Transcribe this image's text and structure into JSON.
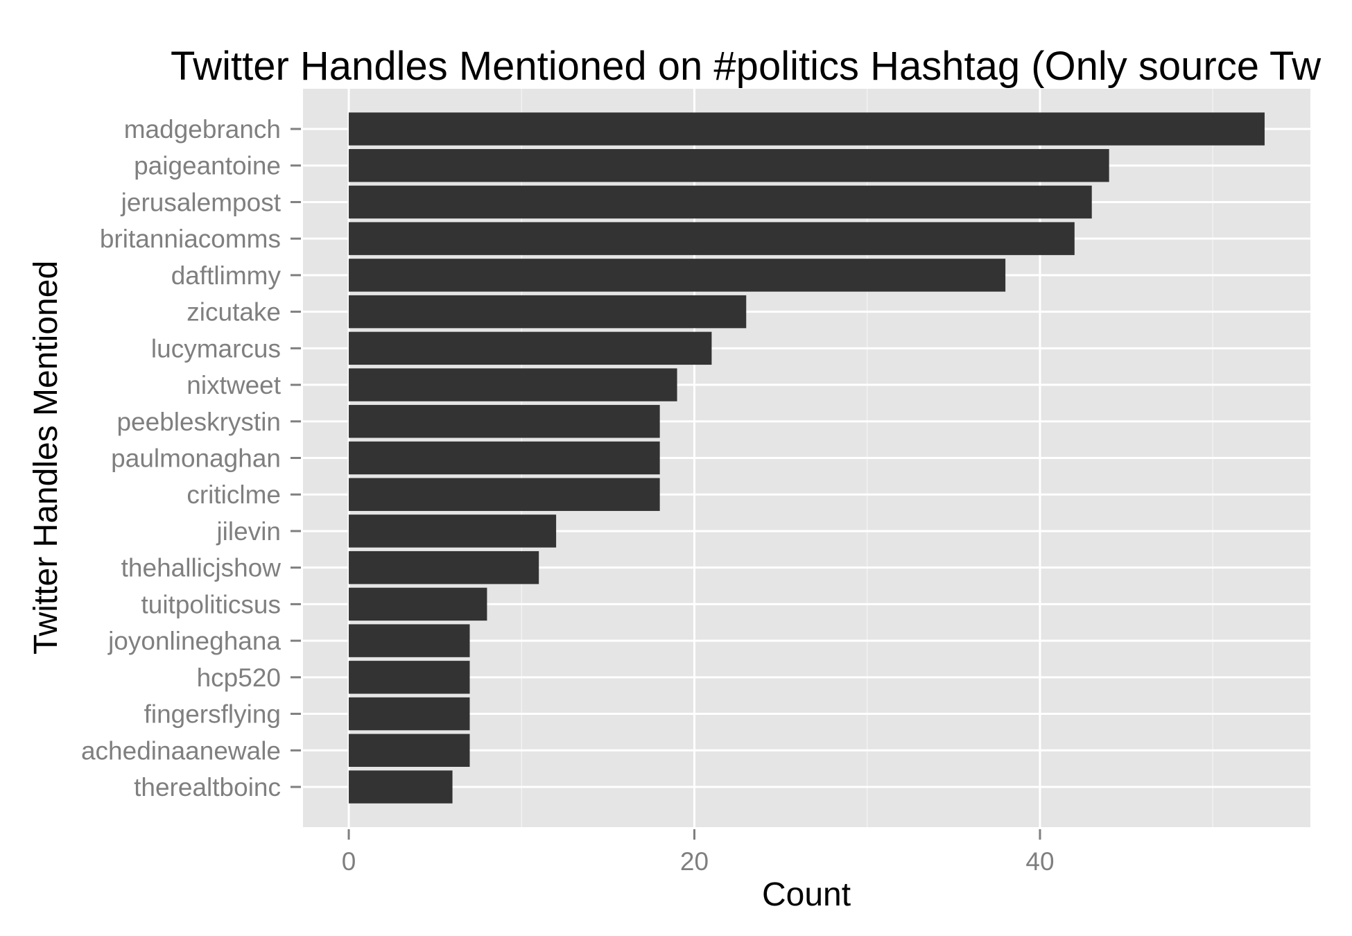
{
  "chart_data": {
    "type": "bar",
    "orientation": "horizontal",
    "title": "Twitter Handles Mentioned on #politics Hashtag (Only source Tw",
    "xlabel": "Count",
    "ylabel": "Twitter Handles Mentioned",
    "categories": [
      "madgebranch",
      "paigeantoine",
      "jerusalempost",
      "britanniacomms",
      "daftlimmy",
      "zicutake",
      "lucymarcus",
      "nixtweet",
      "peebleskrystin",
      "paulmonaghan",
      "criticlme",
      "jilevin",
      "thehallicjshow",
      "tuitpoliticsus",
      "joyonlineghana",
      "hcp520",
      "fingersflying",
      "achedinaanewale",
      "therealtboinc"
    ],
    "values": [
      53,
      44,
      43,
      42,
      38,
      23,
      21,
      19,
      18,
      18,
      18,
      12,
      11,
      8,
      7,
      7,
      7,
      7,
      6
    ],
    "xlim": [
      -2.65,
      55.65
    ],
    "xticks": [
      0,
      20,
      40
    ],
    "grid": true,
    "colors": {
      "bar": "#333333",
      "panel": "#e5e5e5",
      "grid_major": "#ffffff",
      "grid_minor": "#f2f2f2",
      "tick_text": "#7f7f7f",
      "tick_mark": "#7f7f7f"
    }
  }
}
